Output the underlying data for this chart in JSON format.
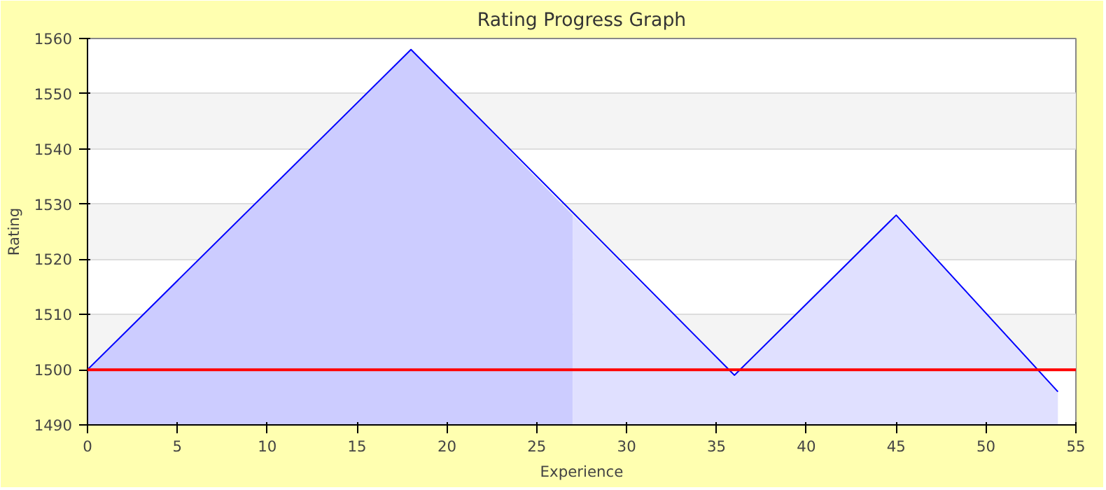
{
  "chart_data": {
    "type": "area",
    "title": "Rating Progress Graph",
    "xlabel": "Experience",
    "ylabel": "Rating",
    "xlim": [
      0,
      55
    ],
    "ylim": [
      1490,
      1560
    ],
    "xticks": [
      0,
      5,
      10,
      15,
      20,
      25,
      30,
      35,
      40,
      45,
      50,
      55
    ],
    "yticks": [
      1490,
      1500,
      1510,
      1520,
      1530,
      1540,
      1550,
      1560
    ],
    "grid": "y",
    "series": [
      {
        "color": "#ccccff",
        "x": [
          0,
          18,
          27
        ],
        "values": [
          1500,
          1558,
          1528
        ]
      },
      {
        "color": "#e0e0ff",
        "x": [
          27,
          36,
          45,
          54
        ],
        "values": [
          1528,
          1499,
          1528,
          1496
        ]
      },
      {
        "type": "line",
        "color": "#0000ff",
        "x": [
          0,
          18,
          36,
          45,
          54
        ],
        "values": [
          1500,
          1558,
          1499,
          1528,
          1496
        ]
      }
    ],
    "ref_lines": [
      {
        "axis": "y",
        "value": 1500,
        "color": "#ff0000"
      }
    ]
  }
}
